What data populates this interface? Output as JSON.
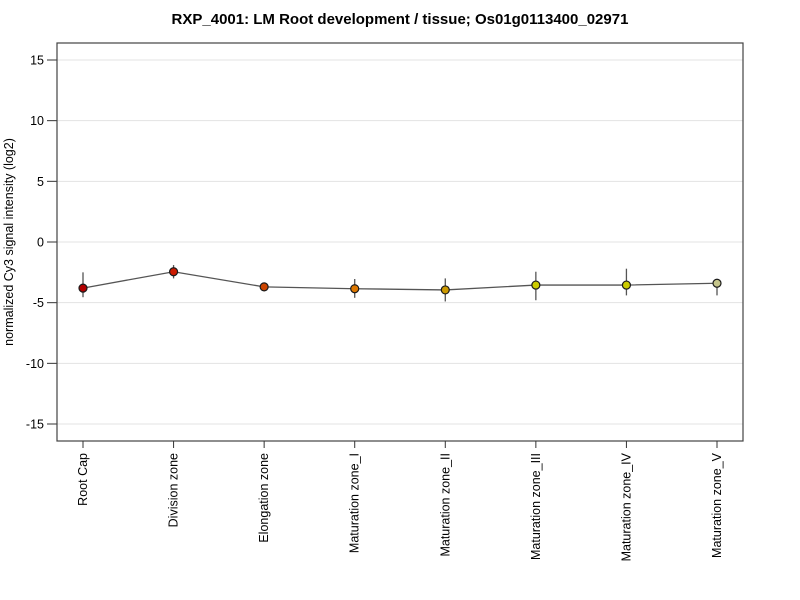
{
  "title": "RXP_4001: LM Root development / tissue; Os01g0113400_02971",
  "chart_data": {
    "type": "line",
    "title": "RXP_4001: LM Root development / tissue; Os01g0113400_02971",
    "xlabel": "",
    "ylabel": "normalized Cy3 signal intensity (log2)",
    "ylim": [
      -16.4,
      16.4
    ],
    "yticks": [
      15,
      10,
      5,
      0,
      -5,
      -10,
      -15
    ],
    "grid": true,
    "legend": "none",
    "categories": [
      "Root Cap",
      "Division zone",
      "Elongation zone",
      "Maturation zone_I",
      "Maturation zone_II",
      "Maturation zone_III",
      "Maturation zone_IV",
      "Maturation zone_V"
    ],
    "series": [
      {
        "name": "normalized Cy3 signal intensity",
        "values": [
          -3.8,
          -2.45,
          -3.7,
          -3.85,
          -3.95,
          -3.55,
          -3.55,
          -3.4
        ],
        "error_upper": [
          -2.5,
          -1.9,
          -3.35,
          -3.05,
          -3.0,
          -2.45,
          -2.2,
          -3.15
        ],
        "error_lower": [
          -4.55,
          -3.0,
          -4.05,
          -4.6,
          -4.9,
          -4.8,
          -4.4,
          -4.4
        ],
        "point_colors": [
          "#b30000",
          "#cc1a00",
          "#cc4400",
          "#dd7700",
          "#cc9900",
          "#cccc00",
          "#cccc00",
          "#c6c68c"
        ],
        "line_color": "#555555"
      }
    ]
  },
  "colors": {
    "background": "#ffffff",
    "plot_border": "#424242",
    "gridline": "#e3e3e3",
    "tick": "#333333",
    "label": "#000000",
    "errorbar": "#555555",
    "point_outline": "#1a1a1a"
  }
}
